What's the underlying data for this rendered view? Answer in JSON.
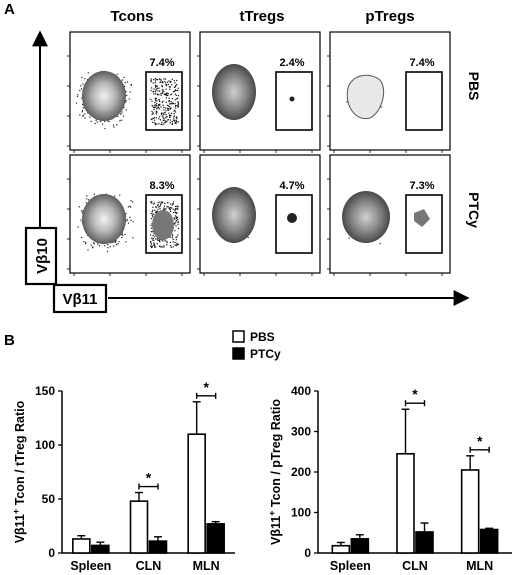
{
  "panel_a": {
    "label": "A",
    "columns": [
      "Tcons",
      "tTregs",
      "pTregs"
    ],
    "rows": [
      "PBS",
      "PTCy"
    ],
    "gate_percents": [
      [
        "7.4%",
        "2.4%",
        "7.4%"
      ],
      [
        "8.3%",
        "4.7%",
        "7.3%"
      ]
    ],
    "y_axis_label": "Vβ10",
    "x_axis_label": "Vβ11"
  },
  "panel_b": {
    "label": "B",
    "legend": [
      "PBS",
      "PTCy"
    ]
  },
  "colors": {
    "pbs": "#ffffff",
    "ptcy": "#000000",
    "ink": "#000000"
  },
  "chart_data": [
    {
      "type": "bar",
      "ylabel_main": "Vβ11",
      "ylabel_sup": "+",
      "ylabel_rest": " Tcon / tTreg Ratio",
      "categories": [
        "Spleen",
        "CLN",
        "MLN"
      ],
      "ylim": [
        0,
        150
      ],
      "yticks": [
        0,
        50,
        100,
        150
      ],
      "series": [
        {
          "name": "PBS",
          "values": [
            13,
            48,
            110
          ],
          "errors": [
            3,
            8,
            30
          ]
        },
        {
          "name": "PTCy",
          "values": [
            7,
            11,
            27
          ],
          "errors": [
            3,
            4,
            2
          ]
        }
      ],
      "significance": [
        {
          "category": "CLN",
          "mark": "*"
        },
        {
          "category": "MLN",
          "mark": "*"
        }
      ]
    },
    {
      "type": "bar",
      "ylabel_main": "Vβ11",
      "ylabel_sup": "+",
      "ylabel_rest": " Tcon / pTreg Ratio",
      "categories": [
        "Spleen",
        "CLN",
        "MLN"
      ],
      "ylim": [
        0,
        400
      ],
      "yticks": [
        0,
        100,
        200,
        300,
        400
      ],
      "series": [
        {
          "name": "PBS",
          "values": [
            18,
            245,
            205
          ],
          "errors": [
            8,
            110,
            35
          ]
        },
        {
          "name": "PTCy",
          "values": [
            35,
            52,
            58
          ],
          "errors": [
            10,
            22,
            3
          ]
        }
      ],
      "significance": [
        {
          "category": "CLN",
          "mark": "*"
        },
        {
          "category": "MLN",
          "mark": "*"
        }
      ]
    }
  ]
}
